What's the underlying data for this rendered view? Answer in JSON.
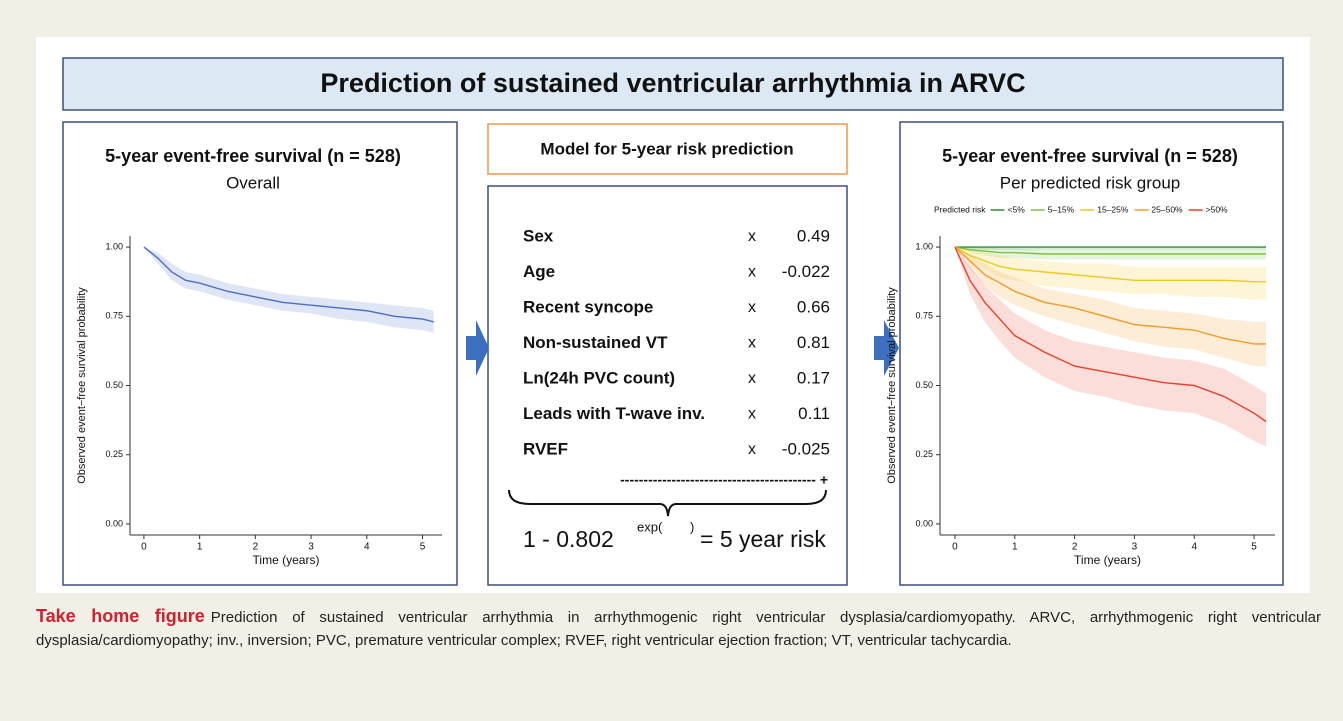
{
  "title": "Prediction of sustained ventricular arrhythmia in ARVC",
  "chart_data": [
    {
      "type": "survival",
      "title": "5-year event-free survival (n = 528)",
      "subtitle": "Overall",
      "xlabel": "Time (years)",
      "ylabel": "Observed event−free survival probability",
      "x": [
        0,
        0.25,
        0.5,
        0.75,
        1,
        1.5,
        2,
        2.5,
        3,
        3.5,
        4,
        4.5,
        5,
        5.2
      ],
      "series": [
        {
          "color": "#4a6fc4",
          "values": [
            1.0,
            0.96,
            0.91,
            0.88,
            0.87,
            0.84,
            0.82,
            0.8,
            0.79,
            0.78,
            0.77,
            0.75,
            0.74,
            0.73
          ],
          "upper": [
            1.0,
            0.98,
            0.94,
            0.91,
            0.9,
            0.87,
            0.85,
            0.83,
            0.82,
            0.81,
            0.8,
            0.79,
            0.78,
            0.77
          ],
          "lower": [
            1.0,
            0.94,
            0.88,
            0.85,
            0.84,
            0.81,
            0.79,
            0.77,
            0.76,
            0.74,
            0.73,
            0.71,
            0.7,
            0.69
          ]
        }
      ],
      "xlim": [
        -0.25,
        5.35
      ],
      "xticks": [
        0,
        1,
        2,
        3,
        4,
        5
      ],
      "ylim": [
        -0.04,
        1.04
      ],
      "yticks": [
        {
          "value": 0,
          "label": "0.00"
        },
        0.25,
        {
          "value": 0.5,
          "label": "0.50"
        },
        0.75,
        {
          "value": 1,
          "label": "1.00"
        }
      ]
    },
    {
      "type": "survival",
      "title": "5-year event-free survival (n = 528)",
      "subtitle": "Per predicted risk group",
      "legend_title": "Predicted risk",
      "xlabel": "Time (years)",
      "ylabel": "Observed event−free survival probability",
      "x": [
        0,
        0.25,
        0.5,
        0.75,
        1,
        1.5,
        2,
        2.5,
        3,
        3.5,
        4,
        4.5,
        5,
        5.2
      ],
      "series": [
        {
          "name": "<5%",
          "color": "#2e8b3a",
          "values": [
            1,
            1,
            1,
            1,
            1,
            1,
            1,
            1,
            1,
            1,
            1,
            1,
            1,
            1
          ],
          "upper": [
            1,
            1,
            1,
            1,
            1,
            1,
            1,
            1,
            1,
            1,
            1,
            1,
            1,
            1
          ],
          "lower": [
            1,
            0.99,
            0.99,
            0.99,
            0.99,
            0.99,
            0.99,
            0.99,
            0.99,
            0.99,
            0.99,
            0.99,
            0.99,
            0.99
          ]
        },
        {
          "name": "5–15%",
          "color": "#7cc142",
          "values": [
            1,
            0.99,
            0.985,
            0.98,
            0.98,
            0.975,
            0.975,
            0.975,
            0.975,
            0.975,
            0.975,
            0.975,
            0.975,
            0.975
          ],
          "upper": [
            1,
            1,
            1,
            0.995,
            0.995,
            0.99,
            0.99,
            0.99,
            0.99,
            0.99,
            0.99,
            0.99,
            0.99,
            0.99
          ],
          "lower": [
            1,
            0.98,
            0.97,
            0.96,
            0.96,
            0.955,
            0.955,
            0.955,
            0.955,
            0.955,
            0.955,
            0.955,
            0.955,
            0.955
          ]
        },
        {
          "name": "15–25%",
          "color": "#f2c81c",
          "values": [
            1,
            0.97,
            0.95,
            0.93,
            0.92,
            0.91,
            0.9,
            0.89,
            0.88,
            0.88,
            0.88,
            0.88,
            0.875,
            0.875
          ],
          "upper": [
            1,
            0.99,
            0.98,
            0.97,
            0.96,
            0.95,
            0.94,
            0.94,
            0.93,
            0.93,
            0.93,
            0.93,
            0.93,
            0.93
          ],
          "lower": [
            1,
            0.95,
            0.92,
            0.89,
            0.88,
            0.86,
            0.85,
            0.84,
            0.83,
            0.83,
            0.82,
            0.82,
            0.81,
            0.81
          ]
        },
        {
          "name": "25–50%",
          "color": "#f59a23",
          "values": [
            1,
            0.95,
            0.9,
            0.87,
            0.84,
            0.8,
            0.78,
            0.75,
            0.72,
            0.71,
            0.7,
            0.67,
            0.65,
            0.65
          ],
          "upper": [
            1,
            0.97,
            0.94,
            0.91,
            0.89,
            0.85,
            0.83,
            0.81,
            0.78,
            0.77,
            0.76,
            0.74,
            0.73,
            0.73
          ],
          "lower": [
            1,
            0.92,
            0.86,
            0.82,
            0.79,
            0.75,
            0.72,
            0.69,
            0.66,
            0.64,
            0.63,
            0.6,
            0.57,
            0.57
          ]
        },
        {
          "name": ">50%",
          "color": "#e8412c",
          "values": [
            1,
            0.88,
            0.8,
            0.74,
            0.68,
            0.62,
            0.57,
            0.55,
            0.53,
            0.51,
            0.5,
            0.46,
            0.4,
            0.37
          ],
          "upper": [
            1,
            0.93,
            0.86,
            0.81,
            0.76,
            0.7,
            0.66,
            0.64,
            0.62,
            0.6,
            0.59,
            0.56,
            0.5,
            0.47
          ],
          "lower": [
            1,
            0.83,
            0.73,
            0.66,
            0.6,
            0.53,
            0.48,
            0.46,
            0.43,
            0.41,
            0.4,
            0.36,
            0.3,
            0.28
          ]
        }
      ],
      "xlim": [
        -0.25,
        5.35
      ],
      "xticks": [
        0,
        1,
        2,
        3,
        4,
        5
      ],
      "ylim": [
        -0.04,
        1.04
      ],
      "yticks": [
        {
          "value": 0,
          "label": "0.00"
        },
        0.25,
        {
          "value": 0.5,
          "label": "0.50"
        },
        0.75,
        {
          "value": 1,
          "label": "1.00"
        }
      ]
    }
  ],
  "model": {
    "title": "Model for 5-year risk prediction",
    "rows": [
      [
        "Sex",
        "x",
        0.49
      ],
      [
        "Age",
        "x",
        -0.022
      ],
      [
        "Recent syncope",
        "x",
        0.66
      ],
      [
        "Non-sustained VT",
        "x",
        0.81
      ],
      [
        "Ln(24h PVC count)",
        "x",
        0.17
      ],
      [
        "Leads with T-wave inv.",
        "x",
        0.11
      ],
      [
        "RVEF",
        "x",
        -0.025
      ]
    ],
    "sum_line": "------------------------------------------ +",
    "formula_base": "1 - 0.802",
    "formula_exp": "exp(",
    "formula_close": ")",
    "formula_result": "= 5 year risk"
  },
  "caption": {
    "label": "Take home figure",
    "text": "Prediction of sustained ventricular arrhythmia in arrhythmogenic right ventricular dysplasia/cardiomyopathy. ARVC, arrhythmogenic right ventricular dysplasia/cardiomyopathy; inv., inversion; PVC, premature ventricular complex; RVEF, right ventricular ejection fraction; VT, ventricular tachycardia."
  }
}
